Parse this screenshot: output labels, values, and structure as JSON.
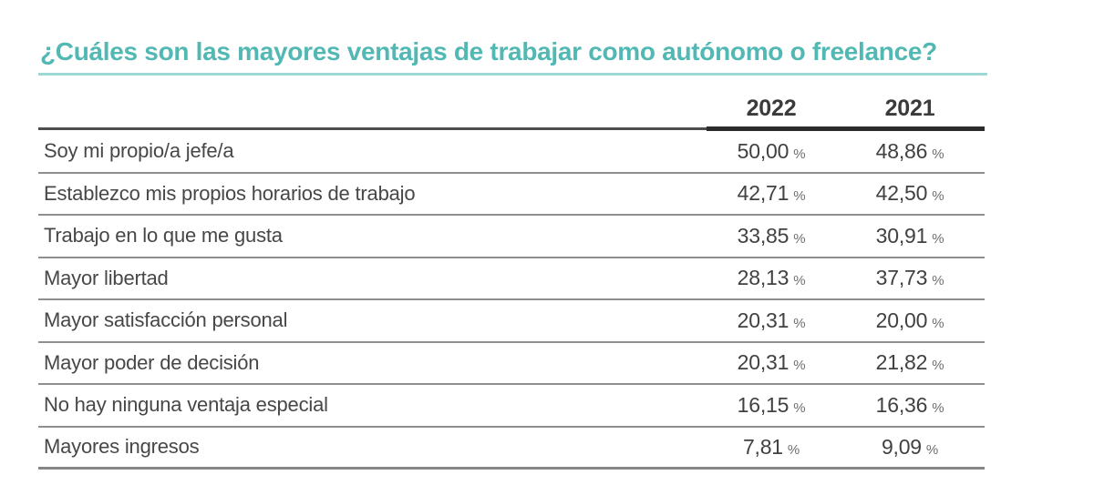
{
  "title": "¿Cuáles son las mayores ventajas de trabajar como autónomo o freelance?",
  "colors": {
    "title_accent": "#52b8b3",
    "title_underline": "#9ed8d4",
    "header_text": "#3b3b3b",
    "body_text": "#474747",
    "divider": "#8f8f8f",
    "header_rule": "#2c2c2c"
  },
  "table": {
    "columns": [
      "2022",
      "2021"
    ],
    "percent_symbol": "%",
    "rows": [
      {
        "label": "Soy mi propio/a jefe/a",
        "v2022": "50,00",
        "v2021": "48,86"
      },
      {
        "label": "Establezco mis propios horarios de trabajo",
        "v2022": "42,71",
        "v2021": "42,50"
      },
      {
        "label": "Trabajo en lo que me gusta",
        "v2022": "33,85",
        "v2021": "30,91"
      },
      {
        "label": "Mayor libertad",
        "v2022": "28,13",
        "v2021": "37,73"
      },
      {
        "label": "Mayor satisfacción personal",
        "v2022": "20,31",
        "v2021": "20,00"
      },
      {
        "label": "Mayor poder de decisión",
        "v2022": "20,31",
        "v2021": "21,82"
      },
      {
        "label": "No hay ninguna ventaja especial",
        "v2022": "16,15",
        "v2021": "16,36"
      },
      {
        "label": "Mayores ingresos",
        "v2022": "7,81",
        "v2021": "9,09"
      }
    ]
  },
  "chart_data": {
    "type": "table",
    "title": "¿Cuáles son las mayores ventajas de trabajar como autónomo o freelance?",
    "categories": [
      "Soy mi propio/a jefe/a",
      "Establezco mis propios horarios de trabajo",
      "Trabajo en lo que me gusta",
      "Mayor libertad",
      "Mayor satisfacción personal",
      "Mayor poder de decisión",
      "No hay ninguna ventaja especial",
      "Mayores ingresos"
    ],
    "series": [
      {
        "name": "2022",
        "values": [
          50.0,
          42.71,
          33.85,
          28.13,
          20.31,
          20.31,
          16.15,
          7.81
        ]
      },
      {
        "name": "2021",
        "values": [
          48.86,
          42.5,
          30.91,
          37.73,
          20.0,
          21.82,
          16.36,
          9.09
        ]
      }
    ],
    "value_unit": "%",
    "value_format": "comma-decimal"
  }
}
